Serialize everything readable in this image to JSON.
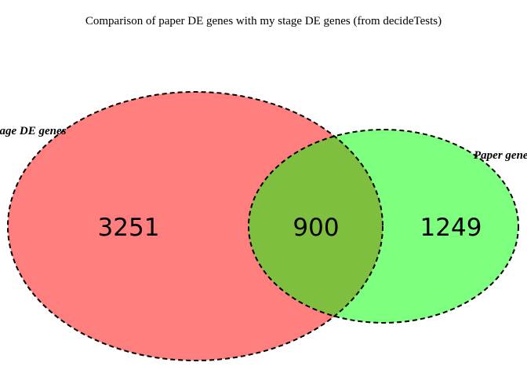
{
  "title": "Comparison of paper DE genes with my stage DE genes (from decideTests)",
  "sets": {
    "left": {
      "label": "Stage DE genes",
      "color": "#ff0000",
      "opacity": 0.5
    },
    "right": {
      "label": "Paper genes",
      "color": "#00ff00",
      "opacity": 0.5
    }
  },
  "counts": {
    "left_only": "3251",
    "intersection": "900",
    "right_only": "1249"
  },
  "outline": {
    "color": "#000000",
    "style": "dashed"
  }
}
